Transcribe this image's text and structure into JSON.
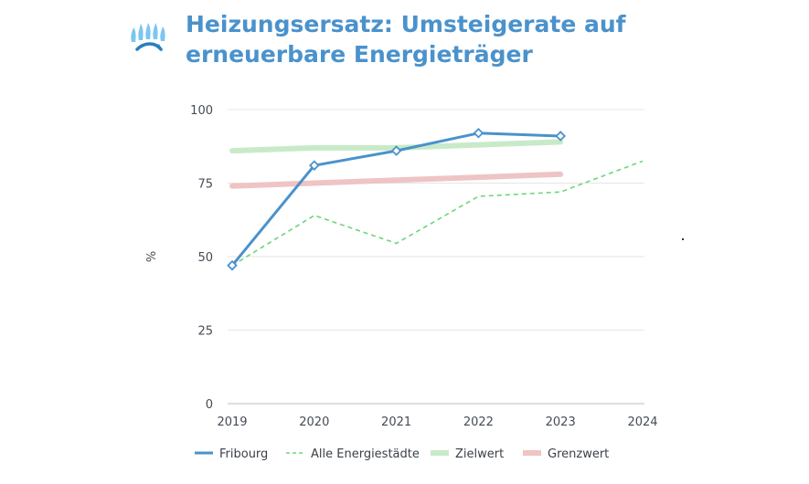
{
  "chart_data": {
    "type": "line",
    "title": "Heizungsersatz: Umsteigerate auf erneuerbare Energieträger",
    "xlabel": "",
    "ylabel": "%",
    "x": [
      "2019",
      "2020",
      "2021",
      "2022",
      "2023",
      "2024"
    ],
    "ylim": [
      0,
      100
    ],
    "yticks": [
      0,
      25,
      50,
      75,
      100
    ],
    "grid": true,
    "legend_position": "bottom",
    "series": [
      {
        "name": "Zielwert",
        "style": "thick",
        "color": "#c8eac8",
        "values": [
          86,
          87,
          87,
          88,
          89,
          null
        ]
      },
      {
        "name": "Grenzwert",
        "style": "thick",
        "color": "#efc4c4",
        "values": [
          74,
          75,
          76,
          77,
          78,
          null
        ]
      },
      {
        "name": "Alle Energiestädte",
        "style": "dashed",
        "color": "#6cd67a",
        "values": [
          47,
          64,
          54.5,
          70.5,
          72,
          82.5
        ]
      },
      {
        "name": "Fribourg",
        "style": "solid-markers",
        "color": "#4a92cc",
        "values": [
          47,
          81,
          86,
          92,
          91,
          null
        ]
      }
    ],
    "legend": [
      "Fribourg",
      "Alle Energiestädte",
      "Zielwert",
      "Grenzwert"
    ]
  },
  "colors": {
    "title": "#4a92cc",
    "grid": "#e6e6e6",
    "axis": "#bcbcbc",
    "logo": "#5fb2e8"
  }
}
